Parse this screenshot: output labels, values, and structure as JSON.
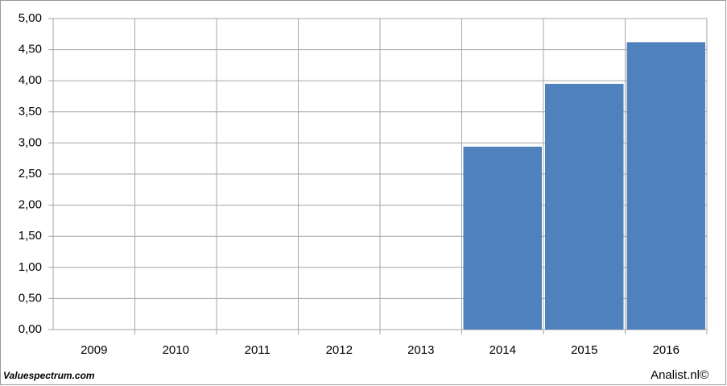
{
  "chart_data": {
    "type": "bar",
    "categories": [
      "2009",
      "2010",
      "2011",
      "2012",
      "2013",
      "2014",
      "2015",
      "2016"
    ],
    "values": [
      null,
      null,
      null,
      null,
      null,
      2.94,
      3.95,
      4.62
    ],
    "color": "#4f81bd",
    "ylim": [
      0,
      5
    ],
    "yticks": [
      {
        "value": 0,
        "label": "0,00"
      },
      {
        "value": 0.5,
        "label": "0,50"
      },
      {
        "value": 1,
        "label": "1,00"
      },
      {
        "value": 1.5,
        "label": "1,50"
      },
      {
        "value": 2,
        "label": "2,00"
      },
      {
        "value": 2.5,
        "label": "2,50"
      },
      {
        "value": 3,
        "label": "3,00"
      },
      {
        "value": 3.5,
        "label": "3,50"
      },
      {
        "value": 4,
        "label": "4,00"
      },
      {
        "value": 4.5,
        "label": "4,50"
      },
      {
        "value": 5,
        "label": "5,00"
      }
    ],
    "grid": true,
    "source_left": "Valuespectrum.com",
    "source_right": "Analist.nl©"
  }
}
